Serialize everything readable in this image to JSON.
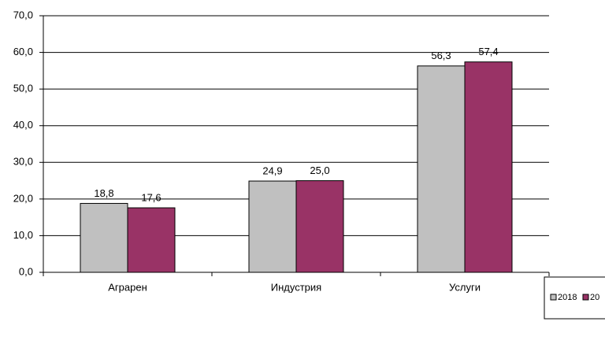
{
  "chart_data": {
    "type": "bar",
    "categories": [
      "Аграрен",
      "Индустрия",
      "Услуги"
    ],
    "series": [
      {
        "name": "2018",
        "color": "#c0c0c0",
        "values": [
          18.8,
          24.9,
          56.3
        ],
        "value_labels": [
          "18,8",
          "24,9",
          "56,3"
        ]
      },
      {
        "name": "20",
        "color": "#993366",
        "values": [
          17.6,
          25.0,
          57.4
        ],
        "value_labels": [
          "17,6",
          "25,0",
          "57,4"
        ]
      }
    ],
    "ylim": [
      0,
      70
    ],
    "yticks": [
      {
        "value": 0,
        "label": "0,0"
      },
      {
        "value": 10,
        "label": "10,0"
      },
      {
        "value": 20,
        "label": "20,0"
      },
      {
        "value": 30,
        "label": "30,0"
      },
      {
        "value": 40,
        "label": "40,0"
      },
      {
        "value": 50,
        "label": "50,0"
      },
      {
        "value": 60,
        "label": "60,0"
      },
      {
        "value": 70,
        "label": "70,0"
      }
    ],
    "grid": true
  }
}
